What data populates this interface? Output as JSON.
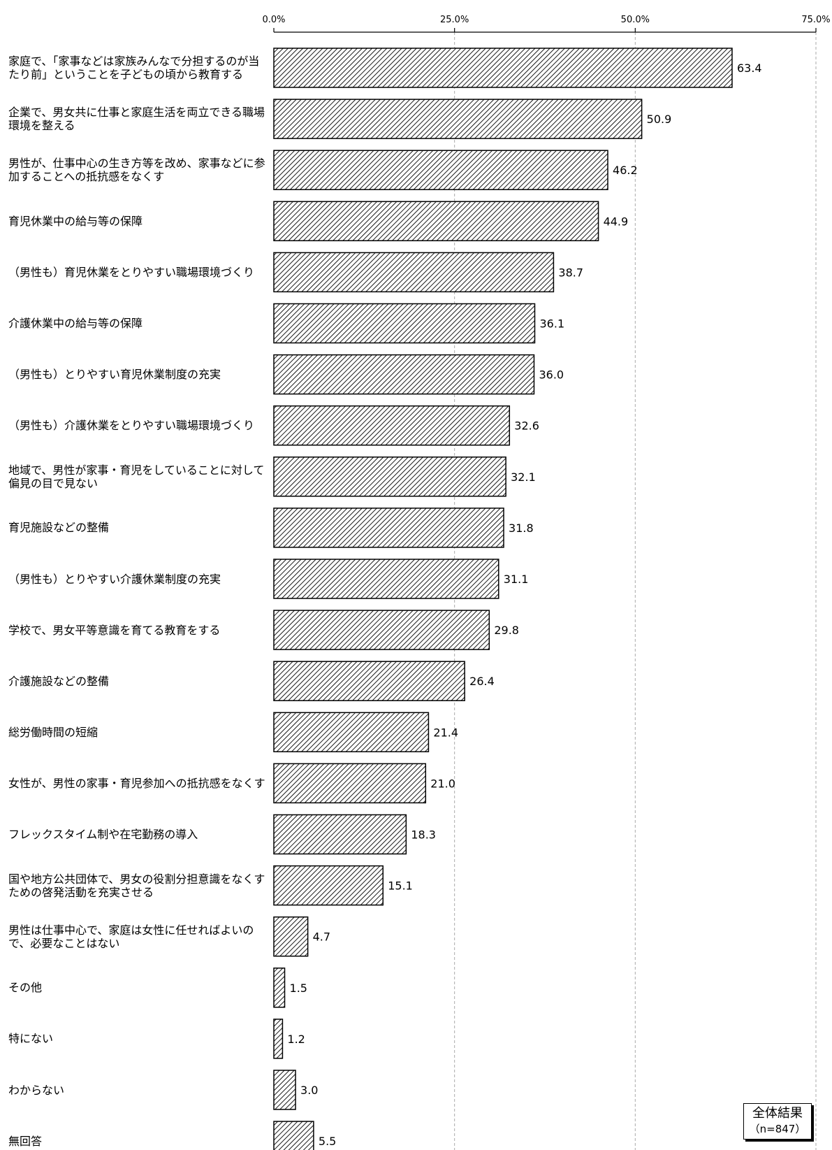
{
  "chart_data": {
    "type": "bar",
    "orientation": "horizontal",
    "categories": [
      "家庭で、「家事などは家族みんなで分担するのが当たり前」ということを子どもの頃から教育する",
      "企業で、男女共に仕事と家庭生活を両立できる職場環境を整える",
      "男性が、仕事中心の生き方等を改め、家事などに参加することへの抵抗感をなくす",
      "育児休業中の給与等の保障",
      "（男性も）育児休業をとりやすい職場環境づくり",
      "介護休業中の給与等の保障",
      "（男性も）とりやすい育児休業制度の充実",
      "（男性も）介護休業をとりやすい職場環境づくり",
      "地域で、男性が家事・育児をしていることに対して偏見の目で見ない",
      "育児施設などの整備",
      "（男性も）とりやすい介護休業制度の充実",
      "学校で、男女平等意識を育てる教育をする",
      "介護施設などの整備",
      "総労働時間の短縮",
      "女性が、男性の家事・育児参加への抵抗感をなくす",
      "フレックスタイム制や在宅勤務の導入",
      "国や地方公共団体で、男女の役割分担意識をなくすための啓発活動を充実させる",
      "男性は仕事中心で、家庭は女性に任せればよいので、必要なことはない",
      "その他",
      "特にない",
      "わからない",
      "無回答"
    ],
    "values": [
      63.4,
      50.9,
      46.2,
      44.9,
      38.7,
      36.1,
      36.0,
      32.6,
      32.1,
      31.8,
      31.1,
      29.8,
      26.4,
      21.4,
      21.0,
      18.3,
      15.1,
      4.7,
      1.5,
      1.2,
      3.0,
      5.5
    ],
    "value_labels": [
      "63.4",
      "50.9",
      "46.2",
      "44.9",
      "38.7",
      "36.1",
      "36.0",
      "32.6",
      "32.1",
      "31.8",
      "31.1",
      "29.8",
      "26.4",
      "21.4",
      "21.0",
      "18.3",
      "15.1",
      "4.7",
      "1.5",
      "1.2",
      "3.0",
      "5.5"
    ],
    "xlim": [
      0,
      75
    ],
    "xticks": [
      0,
      25,
      50,
      75
    ],
    "xtick_labels": [
      "0.0%",
      "25.0%",
      "50.0%",
      "75.0%"
    ],
    "grid": true,
    "bar_pattern": "diagonal-hatch",
    "bar_color": "#000000",
    "legend": {
      "title": "全体結果",
      "n": "（n=847）",
      "position": "bottom-right"
    }
  }
}
